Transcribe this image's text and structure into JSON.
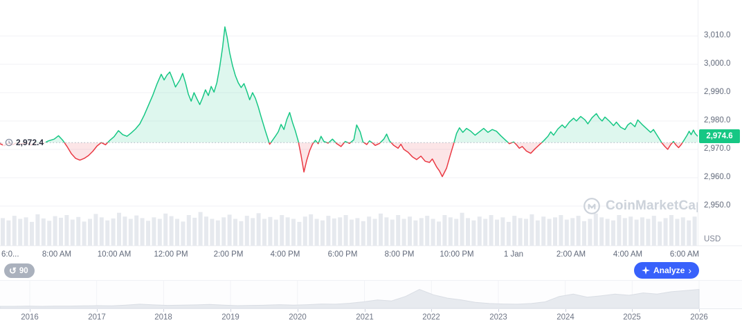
{
  "chart": {
    "baseline_label": "2,972.4",
    "current_price_label": "2,974.6",
    "watermark": "CoinMarketCap"
  },
  "toolbar": {
    "history_badge": "90",
    "analyze_label": "Analyze",
    "analyze_chevron": "›"
  },
  "icons": {
    "history": "↺"
  },
  "colors": {
    "green": "#16c784",
    "green_fill": "rgba(22,199,132,0.14)",
    "red": "#ea3943",
    "red_fill": "rgba(234,57,67,0.13)",
    "blue": "#3861fb",
    "volume": "#e6e9ee",
    "grid": "#f0f2f6",
    "baseline_dash": "#a9b1bd",
    "axis_text": "#61697a",
    "watermark": "#ccd2da",
    "navigator_fill": "#e7eaef",
    "navigator_stroke": "#d9dde4"
  },
  "chart_data": {
    "type": "line",
    "title": "",
    "unit": "USD",
    "baseline": 2972.4,
    "current_price": 2974.6,
    "time_range_hours": [
      6,
      30.45
    ],
    "ylim": [
      2936,
      3023
    ],
    "y_ticks": [
      {
        "value": 3010,
        "label": "3,010.0"
      },
      {
        "value": 3000,
        "label": "3,000.0"
      },
      {
        "value": 2990,
        "label": "2,990.0"
      },
      {
        "value": 2980,
        "label": "2,980.0"
      },
      {
        "value": 2970,
        "label": "2,970.0"
      },
      {
        "value": 2960,
        "label": "2,960.0"
      },
      {
        "value": 2950,
        "label": "2,950.0"
      }
    ],
    "x_ticks": [
      {
        "hour": 6,
        "label": "6:0..."
      },
      {
        "hour": 8,
        "label": "8:00 AM"
      },
      {
        "hour": 10,
        "label": "10:00 AM"
      },
      {
        "hour": 12,
        "label": "12:00 PM"
      },
      {
        "hour": 14,
        "label": "2:00 PM"
      },
      {
        "hour": 16,
        "label": "4:00 PM"
      },
      {
        "hour": 18,
        "label": "6:00 PM"
      },
      {
        "hour": 20,
        "label": "8:00 PM"
      },
      {
        "hour": 22,
        "label": "10:00 PM"
      },
      {
        "hour": 24,
        "label": "1 Jan"
      },
      {
        "hour": 26,
        "label": "2:00 AM"
      },
      {
        "hour": 28,
        "label": "4:00 AM"
      },
      {
        "hour": 30,
        "label": "6:00 AM"
      }
    ],
    "price_series": [
      [
        6.0,
        2972.0
      ],
      [
        6.15,
        2971.3
      ],
      [
        6.3,
        2972.2
      ],
      [
        6.45,
        2971.6
      ],
      [
        6.6,
        2972.5
      ],
      [
        6.75,
        2971.8
      ],
      [
        6.9,
        2972.3
      ],
      [
        7.1,
        2971.5
      ],
      [
        7.3,
        2972.6
      ],
      [
        7.5,
        2972.0
      ],
      [
        7.7,
        2973.0
      ],
      [
        7.9,
        2973.6
      ],
      [
        8.05,
        2974.8
      ],
      [
        8.2,
        2973.2
      ],
      [
        8.35,
        2971.0
      ],
      [
        8.5,
        2968.5
      ],
      [
        8.65,
        2966.8
      ],
      [
        8.8,
        2966.2
      ],
      [
        8.95,
        2966.8
      ],
      [
        9.1,
        2967.8
      ],
      [
        9.25,
        2969.3
      ],
      [
        9.4,
        2971.2
      ],
      [
        9.55,
        2972.4
      ],
      [
        9.7,
        2971.6
      ],
      [
        9.85,
        2973.2
      ],
      [
        10.0,
        2974.5
      ],
      [
        10.15,
        2976.6
      ],
      [
        10.3,
        2975.2
      ],
      [
        10.45,
        2974.6
      ],
      [
        10.6,
        2975.8
      ],
      [
        10.75,
        2977.2
      ],
      [
        10.9,
        2979.0
      ],
      [
        11.05,
        2982.0
      ],
      [
        11.2,
        2985.5
      ],
      [
        11.35,
        2989.0
      ],
      [
        11.5,
        2993.0
      ],
      [
        11.65,
        2996.5
      ],
      [
        11.75,
        2994.5
      ],
      [
        11.85,
        2996.2
      ],
      [
        11.95,
        2997.3
      ],
      [
        12.05,
        2994.8
      ],
      [
        12.15,
        2992.0
      ],
      [
        12.3,
        2994.4
      ],
      [
        12.4,
        2996.8
      ],
      [
        12.5,
        2993.5
      ],
      [
        12.6,
        2989.5
      ],
      [
        12.7,
        2987.0
      ],
      [
        12.8,
        2990.0
      ],
      [
        12.9,
        2987.8
      ],
      [
        13.0,
        2985.8
      ],
      [
        13.1,
        2988.2
      ],
      [
        13.2,
        2991.0
      ],
      [
        13.3,
        2989.0
      ],
      [
        13.4,
        2992.2
      ],
      [
        13.5,
        2990.2
      ],
      [
        13.6,
        2993.5
      ],
      [
        13.7,
        2999.0
      ],
      [
        13.8,
        3006.0
      ],
      [
        13.88,
        3013.2
      ],
      [
        13.96,
        3009.5
      ],
      [
        14.05,
        3004.0
      ],
      [
        14.15,
        2999.5
      ],
      [
        14.25,
        2996.0
      ],
      [
        14.35,
        2993.5
      ],
      [
        14.45,
        2991.8
      ],
      [
        14.55,
        2993.2
      ],
      [
        14.65,
        2990.5
      ],
      [
        14.75,
        2987.5
      ],
      [
        14.85,
        2990.0
      ],
      [
        14.95,
        2988.0
      ],
      [
        15.05,
        2985.0
      ],
      [
        15.15,
        2981.5
      ],
      [
        15.3,
        2976.5
      ],
      [
        15.45,
        2971.8
      ],
      [
        15.55,
        2973.2
      ],
      [
        15.65,
        2974.6
      ],
      [
        15.75,
        2976.2
      ],
      [
        15.85,
        2978.8
      ],
      [
        15.95,
        2977.0
      ],
      [
        16.05,
        2980.5
      ],
      [
        16.15,
        2983.0
      ],
      [
        16.25,
        2979.5
      ],
      [
        16.35,
        2976.5
      ],
      [
        16.45,
        2973.0
      ],
      [
        16.55,
        2968.0
      ],
      [
        16.65,
        2962.0
      ],
      [
        16.75,
        2966.2
      ],
      [
        16.85,
        2969.5
      ],
      [
        16.95,
        2971.8
      ],
      [
        17.05,
        2973.2
      ],
      [
        17.15,
        2972.0
      ],
      [
        17.25,
        2974.6
      ],
      [
        17.35,
        2972.8
      ],
      [
        17.5,
        2972.2
      ],
      [
        17.65,
        2973.6
      ],
      [
        17.8,
        2972.0
      ],
      [
        17.95,
        2971.0
      ],
      [
        18.1,
        2972.8
      ],
      [
        18.25,
        2972.1
      ],
      [
        18.4,
        2973.4
      ],
      [
        18.5,
        2978.6
      ],
      [
        18.62,
        2976.2
      ],
      [
        18.72,
        2972.6
      ],
      [
        18.85,
        2971.7
      ],
      [
        18.95,
        2973.0
      ],
      [
        19.05,
        2972.3
      ],
      [
        19.15,
        2971.4
      ],
      [
        19.3,
        2972.1
      ],
      [
        19.45,
        2973.6
      ],
      [
        19.55,
        2975.4
      ],
      [
        19.65,
        2973.0
      ],
      [
        19.8,
        2971.4
      ],
      [
        19.95,
        2970.4
      ],
      [
        20.05,
        2971.8
      ],
      [
        20.15,
        2970.0
      ],
      [
        20.3,
        2969.0
      ],
      [
        20.45,
        2967.4
      ],
      [
        20.6,
        2966.4
      ],
      [
        20.75,
        2967.6
      ],
      [
        20.9,
        2965.8
      ],
      [
        21.05,
        2965.4
      ],
      [
        21.15,
        2966.6
      ],
      [
        21.3,
        2963.8
      ],
      [
        21.4,
        2962.4
      ],
      [
        21.5,
        2960.4
      ],
      [
        21.65,
        2963.4
      ],
      [
        21.78,
        2968.0
      ],
      [
        21.9,
        2972.0
      ],
      [
        22.0,
        2975.6
      ],
      [
        22.1,
        2977.6
      ],
      [
        22.22,
        2976.0
      ],
      [
        22.35,
        2977.4
      ],
      [
        22.5,
        2976.4
      ],
      [
        22.65,
        2975.0
      ],
      [
        22.8,
        2976.2
      ],
      [
        22.95,
        2977.4
      ],
      [
        23.1,
        2976.0
      ],
      [
        23.25,
        2977.0
      ],
      [
        23.4,
        2976.4
      ],
      [
        23.55,
        2974.8
      ],
      [
        23.7,
        2973.4
      ],
      [
        23.85,
        2972.0
      ],
      [
        24.0,
        2972.6
      ],
      [
        24.1,
        2971.6
      ],
      [
        24.2,
        2970.4
      ],
      [
        24.3,
        2971.0
      ],
      [
        24.45,
        2969.4
      ],
      [
        24.6,
        2968.6
      ],
      [
        24.75,
        2970.2
      ],
      [
        24.9,
        2971.6
      ],
      [
        25.05,
        2973.0
      ],
      [
        25.2,
        2974.6
      ],
      [
        25.3,
        2976.2
      ],
      [
        25.4,
        2975.0
      ],
      [
        25.55,
        2977.2
      ],
      [
        25.7,
        2978.6
      ],
      [
        25.8,
        2977.6
      ],
      [
        25.95,
        2979.6
      ],
      [
        26.1,
        2981.0
      ],
      [
        26.2,
        2980.0
      ],
      [
        26.35,
        2981.6
      ],
      [
        26.5,
        2980.4
      ],
      [
        26.6,
        2979.0
      ],
      [
        26.75,
        2981.2
      ],
      [
        26.9,
        2982.6
      ],
      [
        27.0,
        2981.0
      ],
      [
        27.1,
        2980.0
      ],
      [
        27.2,
        2981.4
      ],
      [
        27.35,
        2980.0
      ],
      [
        27.5,
        2978.4
      ],
      [
        27.6,
        2979.6
      ],
      [
        27.75,
        2977.8
      ],
      [
        27.9,
        2977.0
      ],
      [
        28.0,
        2978.6
      ],
      [
        28.1,
        2979.4
      ],
      [
        28.25,
        2978.0
      ],
      [
        28.35,
        2980.4
      ],
      [
        28.5,
        2978.8
      ],
      [
        28.65,
        2977.4
      ],
      [
        28.8,
        2976.0
      ],
      [
        28.9,
        2977.0
      ],
      [
        29.0,
        2975.4
      ],
      [
        29.1,
        2973.8
      ],
      [
        29.2,
        2972.2
      ],
      [
        29.3,
        2971.0
      ],
      [
        29.4,
        2970.0
      ],
      [
        29.5,
        2971.6
      ],
      [
        29.6,
        2972.8
      ],
      [
        29.68,
        2971.6
      ],
      [
        29.78,
        2970.6
      ],
      [
        29.88,
        2971.8
      ],
      [
        29.98,
        2973.4
      ],
      [
        30.08,
        2975.0
      ],
      [
        30.15,
        2976.4
      ],
      [
        30.22,
        2975.2
      ],
      [
        30.3,
        2976.8
      ],
      [
        30.36,
        2975.6
      ],
      [
        30.45,
        2974.6
      ]
    ],
    "volume_series": [
      0.72,
      0.66,
      0.78,
      0.7,
      0.74,
      0.62,
      0.82,
      0.71,
      0.65,
      0.77,
      0.73,
      0.8,
      0.68,
      0.75,
      0.63,
      0.7,
      0.83,
      0.74,
      0.66,
      0.71,
      0.86,
      0.76,
      0.7,
      0.79,
      0.72,
      0.65,
      0.74,
      0.7,
      0.84,
      0.77,
      0.7,
      0.63,
      0.8,
      0.73,
      0.88,
      0.76,
      0.7,
      0.66,
      0.74,
      0.81,
      0.7,
      0.64,
      0.78,
      0.72,
      0.85,
      0.7,
      0.75,
      0.68,
      0.8,
      0.74,
      0.7,
      0.62,
      0.76,
      0.82,
      0.7,
      0.66,
      0.78,
      0.71,
      0.74,
      0.8,
      0.68,
      0.72,
      0.64,
      0.76,
      0.7,
      0.84,
      0.74,
      0.68,
      0.8,
      0.7,
      0.76,
      0.66,
      0.72,
      0.78,
      0.7,
      0.63,
      0.8,
      0.74,
      0.7,
      0.86,
      0.72,
      0.66,
      0.76,
      0.7,
      0.8,
      0.68,
      0.74,
      0.62,
      0.78,
      0.72,
      0.7,
      0.82,
      0.66,
      0.76,
      0.7,
      0.74,
      0.8,
      0.68,
      0.72,
      0.78,
      0.64,
      0.7,
      0.84,
      0.74,
      0.7,
      0.66,
      0.8,
      0.72,
      0.76,
      0.68,
      0.74,
      0.7,
      0.78,
      0.63,
      0.72,
      0.8,
      0.7,
      0.74,
      0.66,
      0.76
    ],
    "navigator": {
      "years": [
        "2016",
        "2017",
        "2018",
        "2019",
        "2020",
        "2021",
        "2022",
        "2023",
        "2024",
        "2025",
        "2026"
      ],
      "values": [
        0.03,
        0.03,
        0.04,
        0.03,
        0.04,
        0.04,
        0.05,
        0.06,
        0.05,
        0.08,
        0.12,
        0.09,
        0.07,
        0.08,
        0.09,
        0.11,
        0.08,
        0.06,
        0.07,
        0.08,
        0.1,
        0.08,
        0.1,
        0.13,
        0.12,
        0.16,
        0.22,
        0.3,
        0.26,
        0.45,
        0.75,
        0.52,
        0.38,
        0.3,
        0.2,
        0.15,
        0.13,
        0.12,
        0.15,
        0.22,
        0.45,
        0.55,
        0.42,
        0.48,
        0.55,
        0.5,
        0.6,
        0.55,
        0.65,
        0.7,
        0.75
      ]
    }
  }
}
